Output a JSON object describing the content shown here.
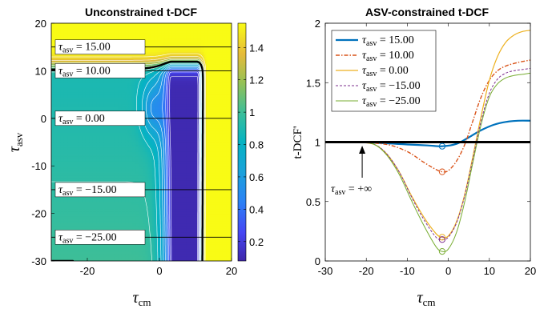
{
  "chart_data": [
    {
      "type": "heatmap",
      "title": "Unconstrained t-DCF",
      "xlabel_symbol": "τ",
      "xlabel_sub": "cm",
      "ylabel_symbol": "τ",
      "ylabel_sub": "asv",
      "xlim": [
        -30,
        20
      ],
      "ylim": [
        -30,
        20
      ],
      "xticks": [
        "-20",
        "0",
        "20"
      ],
      "yticks": [
        "20",
        "10",
        "0",
        "-10",
        "-20",
        "-30"
      ],
      "colorbar": {
        "range": [
          0.08,
          1.55
        ],
        "ticks": [
          "1.4",
          "1.2",
          "1",
          "0.8",
          "0.6",
          "0.4",
          "0.2"
        ],
        "colormap": "parula",
        "low_color": "#3e26a8",
        "high_color": "#f9fb15"
      },
      "contour_color": "#ffffff",
      "boundary_level": 1,
      "boundary_color": "#000000",
      "lines": [
        {
          "y": 15,
          "tau": "τ",
          "sub": "asv",
          "text": " = 15.00"
        },
        {
          "y": 10,
          "tau": "τ",
          "sub": "asv",
          "text": " = 10.00"
        },
        {
          "y": 0,
          "tau": "τ",
          "sub": "asv",
          "text": " = 0.00"
        },
        {
          "y": -15,
          "tau": "τ",
          "sub": "asv",
          "text": " = −15.00"
        },
        {
          "y": -25,
          "tau": "τ",
          "sub": "asv",
          "text": " = −25.00"
        }
      ]
    },
    {
      "type": "line",
      "title": "ASV-constrained t-DCF",
      "xlabel_symbol": "τ",
      "xlabel_sub": "cm",
      "ylabel": "t-DCF'",
      "xlim": [
        -30,
        20
      ],
      "ylim": [
        0,
        2
      ],
      "xticks": [
        "-30",
        "-20",
        "-10",
        "0",
        "10",
        "20"
      ],
      "yticks": [
        "2",
        "1.5",
        "1",
        "0.5",
        "0"
      ],
      "legend": "top-left",
      "annotation": {
        "tau": "τ",
        "sub": "asv",
        "text": " = +∞",
        "x": -21,
        "y": 0.88
      },
      "series": [
        {
          "tau": "τ",
          "sub": "asv",
          "name": " = 15.00",
          "color": "#0072bd",
          "dash": "",
          "width": 2.2,
          "x": [
            -22,
            -15,
            -10,
            -5,
            -1.5,
            2,
            5,
            8,
            11,
            14,
            17,
            20
          ],
          "y": [
            1.0,
            0.99,
            0.98,
            0.972,
            0.965,
            0.985,
            1.04,
            1.1,
            1.145,
            1.17,
            1.18,
            1.18
          ],
          "min": {
            "x": -1.5,
            "y": 0.965
          }
        },
        {
          "tau": "τ",
          "sub": "asv",
          "name": " = 10.00",
          "color": "#d95319",
          "dash": "5,2,1.5,2",
          "width": 1.4,
          "x": [
            -22,
            -15,
            -10,
            -6,
            -3,
            -1.5,
            0,
            2,
            4,
            6,
            8,
            10,
            12,
            14,
            17,
            20
          ],
          "y": [
            1.0,
            0.98,
            0.92,
            0.83,
            0.77,
            0.75,
            0.76,
            0.84,
            0.98,
            1.18,
            1.38,
            1.52,
            1.6,
            1.64,
            1.67,
            1.69
          ],
          "min": {
            "x": -1.5,
            "y": 0.75
          }
        },
        {
          "tau": "τ",
          "sub": "asv",
          "name": " = 0.00",
          "color": "#edb120",
          "dash": "",
          "width": 1.2,
          "x": [
            -22,
            -18,
            -15,
            -12,
            -9,
            -6,
            -3,
            -1.5,
            0,
            2,
            4,
            6,
            8,
            10,
            12,
            14,
            16,
            18,
            20
          ],
          "y": [
            1.0,
            0.98,
            0.9,
            0.75,
            0.55,
            0.37,
            0.23,
            0.2,
            0.21,
            0.33,
            0.56,
            0.88,
            1.22,
            1.52,
            1.72,
            1.84,
            1.9,
            1.93,
            1.94
          ],
          "min": {
            "x": -1.5,
            "y": 0.2
          }
        },
        {
          "tau": "τ",
          "sub": "asv",
          "name": " = −15.00",
          "color": "#7e2f8e",
          "dash": "3,2",
          "width": 1.0,
          "x": [
            -22,
            -18,
            -15,
            -12,
            -9,
            -6,
            -3,
            -1.5,
            0,
            2,
            4,
            6,
            8,
            10,
            12,
            14,
            16,
            18,
            20
          ],
          "y": [
            1.0,
            0.98,
            0.9,
            0.75,
            0.54,
            0.35,
            0.2,
            0.18,
            0.2,
            0.32,
            0.55,
            0.86,
            1.18,
            1.41,
            1.53,
            1.58,
            1.6,
            1.61,
            1.62
          ],
          "min": {
            "x": -1.5,
            "y": 0.18
          }
        },
        {
          "tau": "τ",
          "sub": "asv",
          "name": " = −25.00",
          "color": "#77ac30",
          "dash": "",
          "width": 1.0,
          "x": [
            -22,
            -18,
            -15,
            -12,
            -9,
            -6,
            -3,
            -1.5,
            0,
            2,
            4,
            6,
            8,
            10,
            12,
            14,
            16,
            18,
            20
          ],
          "y": [
            1.0,
            0.98,
            0.89,
            0.73,
            0.51,
            0.3,
            0.12,
            0.08,
            0.1,
            0.24,
            0.5,
            0.83,
            1.15,
            1.38,
            1.49,
            1.54,
            1.56,
            1.57,
            1.58
          ],
          "min": {
            "x": -1.5,
            "y": 0.08
          }
        }
      ],
      "reference_line": {
        "y": 1,
        "color": "#000000"
      }
    }
  ]
}
